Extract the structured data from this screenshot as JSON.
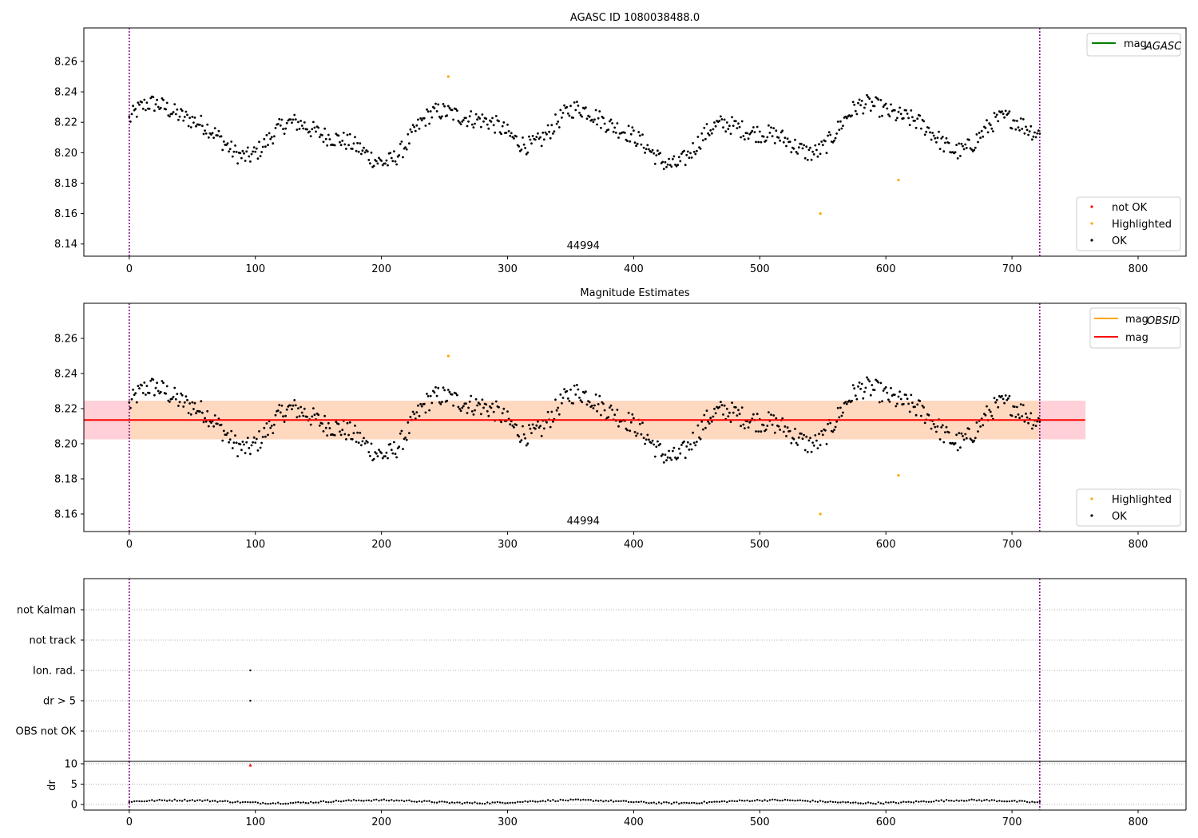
{
  "chart_data": [
    {
      "type": "scatter",
      "title": "AGASC ID 1080038488.0",
      "xlim": [
        -36,
        838
      ],
      "ylim": [
        8.132,
        8.282
      ],
      "x_ticks": [
        "0",
        "100",
        "200",
        "300",
        "400",
        "500",
        "600",
        "700",
        "800"
      ],
      "y_ticks": [
        "8.14",
        "8.16",
        "8.18",
        "8.20",
        "8.22",
        "8.24",
        "8.26"
      ],
      "obsid_label": "44994",
      "obsid_label_x": 360,
      "vlines_x": [
        0,
        722
      ],
      "legend_top": [
        "mag",
        "AGASC"
      ],
      "legend_bottom": [
        "not OK",
        "Highlighted",
        "OK"
      ],
      "colors": {
        "ok": "#000000",
        "highlighted": "#ffa500",
        "not_ok": "#ff0000",
        "agasc_line": "#008000",
        "vline": "#800080"
      },
      "series": [
        {
          "name": "OK",
          "values_description": "black markers around 8.19–8.24, x from 0 to 722"
        },
        {
          "name": "Highlighted",
          "points": [
            [
              253,
              8.25
            ],
            [
              548,
              8.16
            ],
            [
              610,
              8.182
            ]
          ]
        }
      ]
    },
    {
      "type": "scatter",
      "title": "Magnitude Estimates",
      "xlim": [
        -36,
        838
      ],
      "ylim": [
        8.15,
        8.28
      ],
      "x_ticks": [
        "0",
        "100",
        "200",
        "300",
        "400",
        "500",
        "600",
        "700",
        "800"
      ],
      "y_ticks": [
        "8.16",
        "8.18",
        "8.20",
        "8.22",
        "8.24",
        "8.26"
      ],
      "obsid_label": "44994",
      "obsid_label_x": 360,
      "vlines_x": [
        0,
        722
      ],
      "mag_line": 8.2135,
      "mag_band": [
        8.2025,
        8.2245
      ],
      "band_x": [
        -36,
        758
      ],
      "obsid_band_x": [
        0,
        722
      ],
      "legend_top": [
        "mag",
        "OBSID",
        "mag"
      ],
      "legend_bottom": [
        "Highlighted",
        "OK"
      ],
      "colors": {
        "mag_obsid": "#ffa500",
        "mag": "#ff0000",
        "band_outer": "#ffd0d8",
        "band_inner": "#ffd8c0"
      },
      "series": [
        {
          "name": "OK",
          "values_description": "same values as top panel"
        },
        {
          "name": "Highlighted",
          "points": [
            [
              253,
              8.25
            ],
            [
              548,
              8.16
            ],
            [
              610,
              8.182
            ]
          ]
        }
      ]
    },
    {
      "type": "scatter",
      "title": "",
      "categories": [
        "not Kalman",
        "not track",
        "Ion. rad.",
        "dr > 5",
        "OBS not OK"
      ],
      "xlim": [
        -36,
        838
      ],
      "vlines_x": [
        0,
        722
      ],
      "flag_points": [
        {
          "category": "Ion. rad.",
          "x": 96
        },
        {
          "category": "dr > 5",
          "x": 96
        }
      ]
    },
    {
      "type": "scatter",
      "ylabel": "dr",
      "y_ticks": [
        "0",
        "5",
        "10"
      ],
      "ylim": [
        -0.5,
        10.5
      ],
      "xlim": [
        -36,
        838
      ],
      "x_ticks": [
        "0",
        "100",
        "200",
        "300",
        "400",
        "500",
        "600",
        "700",
        "800"
      ],
      "vlines_x": [
        0,
        722
      ],
      "outlier": {
        "x": 96,
        "y": 9.7,
        "color": "#ff0000"
      },
      "series": [
        {
          "name": "",
          "values_description": "dr values between 0.2 and 1.2 for x from 0 to 722"
        }
      ]
    }
  ]
}
